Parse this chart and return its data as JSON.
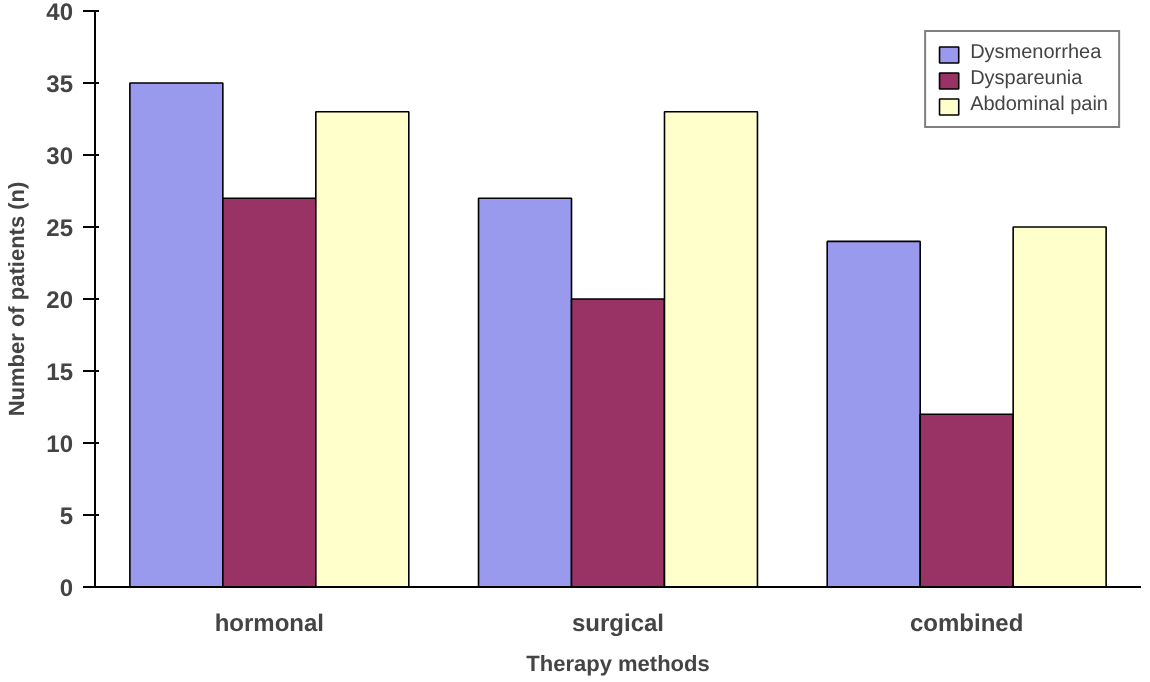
{
  "chart_data": {
    "type": "bar",
    "xlabel": "Therapy methods",
    "ylabel": "Number of patients (n)",
    "categories": [
      "hormonal",
      "surgical",
      "combined"
    ],
    "series": [
      {
        "name": "Dysmenorrhea",
        "color": "#9999ee",
        "values": [
          35,
          27,
          24
        ]
      },
      {
        "name": "Dyspareunia",
        "color": "#993366",
        "values": [
          27,
          20,
          12
        ]
      },
      {
        "name": "Abdominal pain",
        "color": "#ffffcc",
        "values": [
          33,
          33,
          25
        ]
      }
    ],
    "ylim": [
      0,
      40
    ],
    "yticks": [
      0,
      5,
      10,
      15,
      20,
      25,
      30,
      35,
      40
    ],
    "grid": false,
    "legend": "top right"
  }
}
